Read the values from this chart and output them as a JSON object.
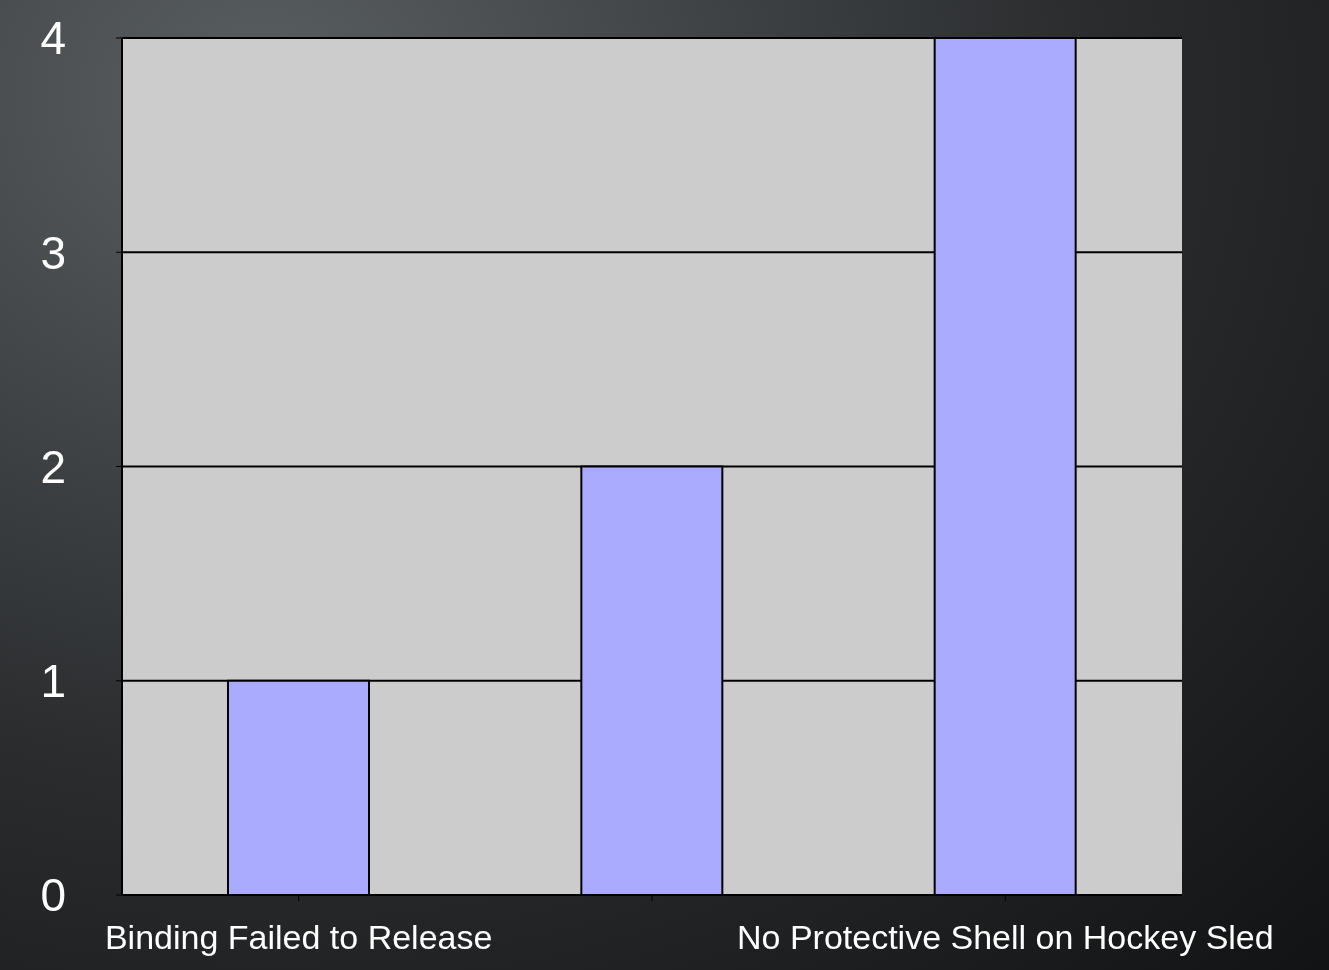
{
  "chart_data": {
    "type": "bar",
    "categories": [
      "Binding Failed to Release",
      null,
      "No Protective Shell on Hockey Sled"
    ],
    "values": [
      1,
      2,
      4
    ],
    "color": "#aaaaff",
    "ylim": [
      0,
      4
    ],
    "yticks": [
      0,
      1,
      2,
      3,
      4
    ],
    "grid": "y"
  }
}
